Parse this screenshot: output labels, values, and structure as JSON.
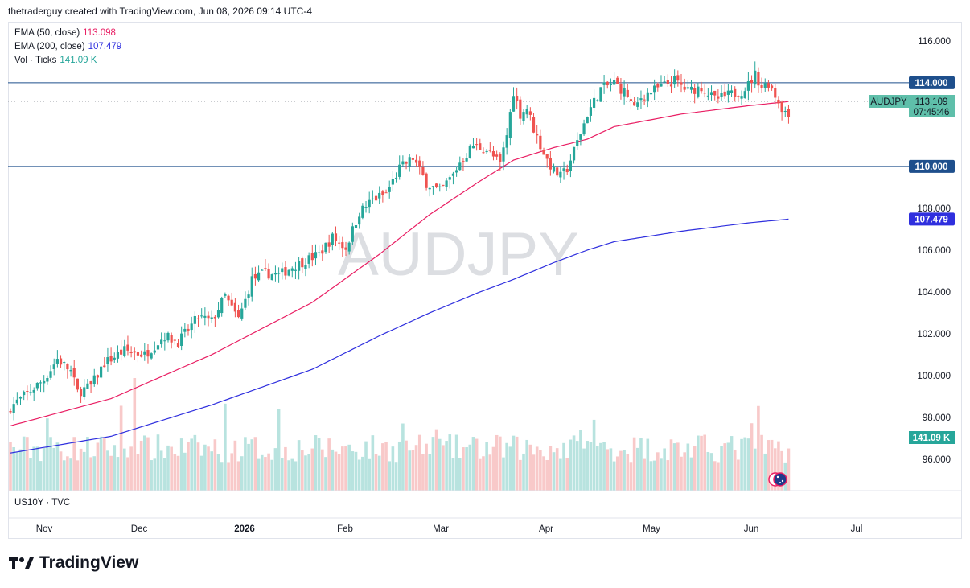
{
  "header": {
    "text": "thetraderguy created with TradingView.com, Jun 08, 2026 09:14 UTC-4"
  },
  "legend": [
    {
      "label": "EMA (50, close)",
      "value": "113.098",
      "color": "#e91e63"
    },
    {
      "label": "EMA (200, close)",
      "value": "107.479",
      "color": "#2f2fde"
    },
    {
      "label": "Vol · Ticks",
      "value": "141.09 K",
      "color": "#26a69a"
    }
  ],
  "watermark": "AUDJPY",
  "sub_pane_label": "US10Y · TVC",
  "logo_text": "TradingView",
  "colors": {
    "up": "#26a69a",
    "down": "#ef5350",
    "vol_up": "#b8e3df",
    "vol_down": "#f8c9c9",
    "hline": "#1e4f8c",
    "ema50": "#e91e63",
    "ema200": "#2f2fde"
  },
  "chart_data": {
    "type": "candlestick",
    "symbol": "AUDJPY",
    "y_ticks": [
      "116.000",
      "108.000",
      "106.000",
      "104.000",
      "102.000",
      "100.000",
      "98.000",
      "96.000"
    ],
    "ylim": [
      94.5,
      116.8
    ],
    "x_ticks": [
      "Nov",
      "Dec",
      "2026",
      "Feb",
      "Mar",
      "Apr",
      "May",
      "Jun",
      "Jul"
    ],
    "price_labels": [
      {
        "text": "114.000",
        "value": 114.0,
        "bg": "#1e4f8c"
      },
      {
        "text": "110.000",
        "value": 110.0,
        "bg": "#1e4f8c"
      },
      {
        "text": "113.098",
        "value": 113.098,
        "bg": "#e91e63"
      },
      {
        "text": "107.479",
        "value": 107.479,
        "bg": "#2f2fde"
      }
    ],
    "last_price": {
      "symbol": "AUDJPY",
      "price": "113.109",
      "countdown": "07:45:46",
      "bg": "#5fbfaa"
    },
    "volume_label": {
      "text": "141.09 K",
      "bg": "#26a69a"
    },
    "horizontal_lines": [
      114.0,
      110.0
    ],
    "close_path": [
      [
        0,
        98.5
      ],
      [
        10,
        99.8
      ],
      [
        14,
        100.8
      ],
      [
        18,
        100.2
      ],
      [
        20,
        99.2
      ],
      [
        24,
        99.5
      ],
      [
        28,
        100.6
      ],
      [
        34,
        101.2
      ],
      [
        40,
        101.0
      ],
      [
        46,
        101.9
      ],
      [
        50,
        101.6
      ],
      [
        56,
        102.8
      ],
      [
        60,
        102.6
      ],
      [
        64,
        103.8
      ],
      [
        66,
        103.2
      ],
      [
        68,
        102.7
      ],
      [
        70,
        103.6
      ],
      [
        72,
        104.6
      ],
      [
        76,
        104.9
      ],
      [
        80,
        104.8
      ],
      [
        84,
        105.2
      ],
      [
        88,
        105.5
      ],
      [
        92,
        105.8
      ],
      [
        96,
        106.6
      ],
      [
        100,
        106.1
      ],
      [
        104,
        107.8
      ],
      [
        108,
        108.4
      ],
      [
        112,
        108.7
      ],
      [
        116,
        109.9
      ],
      [
        120,
        110.4
      ],
      [
        124,
        109.2
      ],
      [
        128,
        108.8
      ],
      [
        132,
        109.6
      ],
      [
        134,
        110.2
      ],
      [
        138,
        111.0
      ],
      [
        142,
        110.8
      ],
      [
        146,
        110.1
      ],
      [
        148,
        111.5
      ],
      [
        150,
        113.6
      ],
      [
        152,
        112.5
      ],
      [
        154,
        112.8
      ],
      [
        156,
        111.8
      ],
      [
        158,
        111.0
      ],
      [
        160,
        110.3
      ],
      [
        162,
        109.8
      ],
      [
        164,
        109.5
      ],
      [
        166,
        109.9
      ],
      [
        170,
        111.6
      ],
      [
        172,
        112.5
      ],
      [
        176,
        113.7
      ],
      [
        180,
        114.0
      ],
      [
        184,
        113.4
      ],
      [
        186,
        112.7
      ],
      [
        188,
        113.3
      ],
      [
        190,
        113.5
      ],
      [
        194,
        113.8
      ],
      [
        198,
        114.1
      ],
      [
        202,
        113.6
      ],
      [
        206,
        113.8
      ],
      [
        210,
        113.2
      ],
      [
        214,
        113.4
      ],
      [
        218,
        113.6
      ],
      [
        220,
        113.9
      ],
      [
        222,
        114.4
      ],
      [
        224,
        113.8
      ],
      [
        226,
        114.0
      ],
      [
        228,
        113.4
      ],
      [
        230,
        112.8
      ],
      [
        232,
        112.4
      ]
    ],
    "ema50_points": [
      [
        0,
        97.6
      ],
      [
        30,
        98.9
      ],
      [
        60,
        101.0
      ],
      [
        90,
        103.5
      ],
      [
        110,
        105.8
      ],
      [
        125,
        107.7
      ],
      [
        140,
        109.3
      ],
      [
        150,
        110.3
      ],
      [
        162,
        110.9
      ],
      [
        172,
        111.3
      ],
      [
        180,
        111.9
      ],
      [
        200,
        112.5
      ],
      [
        220,
        112.9
      ],
      [
        232,
        113.1
      ]
    ],
    "ema200_points": [
      [
        0,
        96.3
      ],
      [
        30,
        97.1
      ],
      [
        60,
        98.6
      ],
      [
        90,
        100.3
      ],
      [
        110,
        101.9
      ],
      [
        125,
        103.0
      ],
      [
        140,
        104.0
      ],
      [
        150,
        104.6
      ],
      [
        162,
        105.4
      ],
      [
        172,
        106.0
      ],
      [
        180,
        106.4
      ],
      [
        200,
        106.9
      ],
      [
        220,
        107.3
      ],
      [
        232,
        107.48
      ]
    ]
  }
}
